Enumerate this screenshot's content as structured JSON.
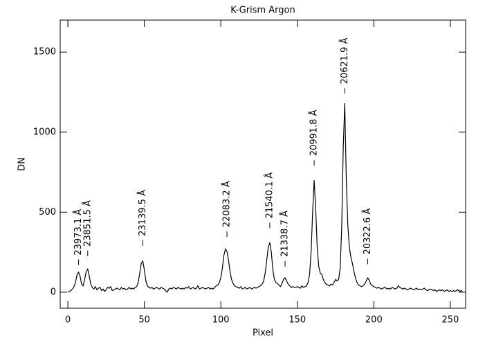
{
  "chart_data": {
    "type": "line",
    "title": "K-Grism Argon",
    "x_label": "Pixel",
    "y_label": "DN",
    "xlim": [
      -5,
      260
    ],
    "ylim": [
      -100,
      1700
    ],
    "xticks": [
      0,
      50,
      100,
      150,
      200,
      250
    ],
    "yticks": [
      0,
      500,
      1000,
      1500
    ],
    "color": "#000000",
    "x": [
      0,
      1,
      2,
      3,
      4,
      5,
      6,
      7,
      8,
      9,
      10,
      11,
      12,
      13,
      14,
      15,
      16,
      17,
      18,
      19,
      20,
      21,
      22,
      23,
      24,
      25,
      26,
      27,
      28,
      29,
      30,
      31,
      32,
      33,
      34,
      35,
      36,
      37,
      38,
      39,
      40,
      41,
      42,
      43,
      44,
      45,
      46,
      47,
      48,
      49,
      50,
      51,
      52,
      53,
      54,
      55,
      56,
      57,
      58,
      59,
      60,
      61,
      62,
      63,
      64,
      65,
      66,
      67,
      68,
      69,
      70,
      71,
      72,
      73,
      74,
      75,
      76,
      77,
      78,
      79,
      80,
      81,
      82,
      83,
      84,
      85,
      86,
      87,
      88,
      89,
      90,
      91,
      92,
      93,
      94,
      95,
      96,
      97,
      98,
      99,
      100,
      101,
      102,
      103,
      104,
      105,
      106,
      107,
      108,
      109,
      110,
      111,
      112,
      113,
      114,
      115,
      116,
      117,
      118,
      119,
      120,
      121,
      122,
      123,
      124,
      125,
      126,
      127,
      128,
      129,
      130,
      131,
      132,
      133,
      134,
      135,
      136,
      137,
      138,
      139,
      140,
      141,
      142,
      143,
      144,
      145,
      146,
      147,
      148,
      149,
      150,
      151,
      152,
      153,
      154,
      155,
      156,
      157,
      158,
      159,
      160,
      161,
      162,
      163,
      164,
      165,
      166,
      167,
      168,
      169,
      170,
      171,
      172,
      173,
      174,
      175,
      176,
      177,
      178,
      179,
      180,
      181,
      182,
      183,
      184,
      185,
      186,
      187,
      188,
      189,
      190,
      191,
      192,
      193,
      194,
      195,
      196,
      197,
      198,
      199,
      200,
      201,
      202,
      203,
      204,
      205,
      206,
      207,
      208,
      209,
      210,
      211,
      212,
      213,
      214,
      215,
      216,
      217,
      218,
      219,
      220,
      221,
      222,
      223,
      224,
      225,
      226,
      227,
      228,
      229,
      230,
      231,
      232,
      233,
      234,
      235,
      236,
      237,
      238,
      239,
      240,
      241,
      242,
      243,
      244,
      245,
      246,
      247,
      248,
      249,
      250,
      251,
      252,
      253,
      254,
      255,
      256,
      257,
      258
    ],
    "values": [
      0,
      5,
      10,
      20,
      35,
      60,
      110,
      125,
      100,
      50,
      40,
      80,
      130,
      145,
      100,
      50,
      30,
      20,
      35,
      15,
      25,
      30,
      10,
      20,
      5,
      15,
      30,
      25,
      35,
      10,
      15,
      20,
      25,
      20,
      15,
      30,
      20,
      25,
      15,
      20,
      30,
      20,
      25,
      20,
      30,
      35,
      60,
      120,
      180,
      195,
      140,
      70,
      40,
      30,
      25,
      30,
      20,
      25,
      30,
      25,
      20,
      30,
      25,
      20,
      10,
      0,
      20,
      25,
      20,
      30,
      25,
      20,
      30,
      25,
      20,
      25,
      20,
      30,
      25,
      35,
      20,
      25,
      30,
      20,
      25,
      40,
      20,
      25,
      30,
      25,
      20,
      25,
      30,
      20,
      25,
      20,
      30,
      40,
      45,
      60,
      90,
      150,
      230,
      270,
      255,
      200,
      130,
      80,
      55,
      40,
      35,
      30,
      25,
      35,
      20,
      25,
      30,
      20,
      25,
      30,
      20,
      25,
      30,
      25,
      30,
      35,
      40,
      50,
      70,
      120,
      200,
      280,
      310,
      250,
      140,
      80,
      60,
      55,
      45,
      35,
      55,
      80,
      90,
      70,
      50,
      40,
      30,
      35,
      30,
      30,
      35,
      30,
      25,
      40,
      30,
      35,
      40,
      60,
      110,
      250,
      500,
      700,
      520,
      280,
      160,
      120,
      110,
      80,
      60,
      50,
      45,
      40,
      50,
      45,
      60,
      80,
      70,
      80,
      150,
      400,
      900,
      1180,
      700,
      420,
      280,
      220,
      180,
      130,
      90,
      60,
      45,
      40,
      35,
      40,
      50,
      70,
      90,
      75,
      50,
      40,
      35,
      30,
      25,
      30,
      25,
      20,
      25,
      30,
      25,
      20,
      25,
      20,
      30,
      25,
      20,
      25,
      40,
      30,
      25,
      20,
      25,
      20,
      15,
      20,
      25,
      20,
      15,
      20,
      25,
      15,
      20,
      15,
      20,
      25,
      15,
      10,
      15,
      20,
      15,
      10,
      15,
      5,
      10,
      15,
      10,
      15,
      5,
      10,
      15,
      5,
      10,
      5,
      10,
      5,
      10,
      15,
      5,
      10,
      5
    ],
    "annotations": [
      {
        "text": "23973.1 Å",
        "x": 7,
        "y": 170
      },
      {
        "text": "23851.5 Å",
        "x": 13,
        "y": 225
      },
      {
        "text": "23139.5 Å",
        "x": 49,
        "y": 290
      },
      {
        "text": "22083.2 Å",
        "x": 104,
        "y": 345
      },
      {
        "text": "21540.1 Å",
        "x": 132,
        "y": 400
      },
      {
        "text": "21338.7 Å",
        "x": 142,
        "y": 160
      },
      {
        "text": "20991.8 Å",
        "x": 161,
        "y": 790
      },
      {
        "text": "20621.9 Å",
        "x": 181,
        "y": 1240
      },
      {
        "text": "20322.6 Å",
        "x": 196,
        "y": 175
      }
    ]
  }
}
